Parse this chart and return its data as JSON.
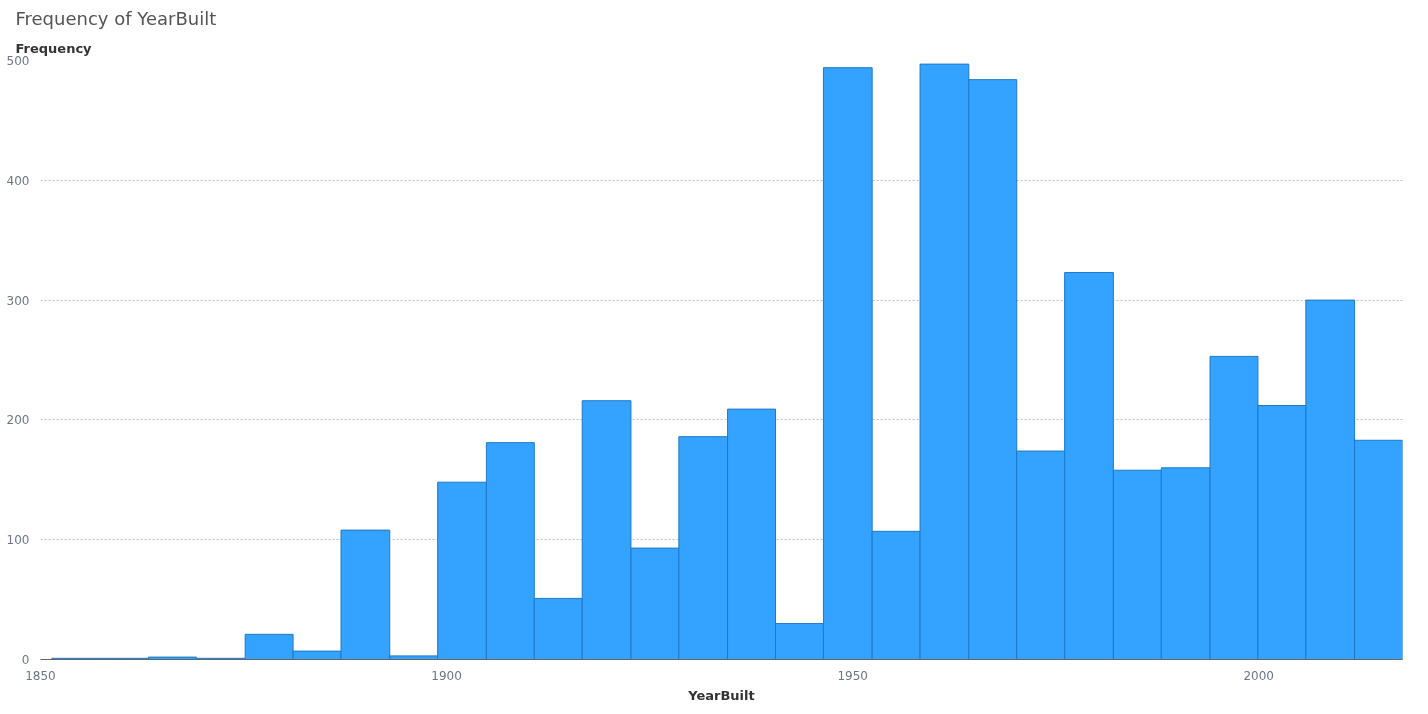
{
  "chart_data": {
    "type": "histogram",
    "title": "Frequency of YearBuilt",
    "xlabel": "YearBuilt",
    "ylabel": "Frequency",
    "bins": [
      1851.4,
      1857.3,
      1863.3,
      1869.2,
      1875.2,
      1881.1,
      1887.0,
      1893.0,
      1898.9,
      1904.9,
      1910.8,
      1916.7,
      1922.7,
      1928.6,
      1934.6,
      1940.5,
      1946.4,
      1952.4,
      1958.3,
      1964.3,
      1970.2,
      1976.1,
      1982.1,
      1988.0,
      1994.0,
      1999.9,
      2005.8,
      2011.8,
      2017.7
    ],
    "values": [
      1,
      1,
      2,
      1,
      21,
      7,
      108,
      3,
      148,
      181,
      51,
      216,
      93,
      186,
      209,
      30,
      494,
      107,
      497,
      484,
      174,
      323,
      158,
      160,
      253,
      212,
      300,
      183
    ],
    "color": "#33a3ff",
    "xlim": [
      1850,
      2017.7
    ],
    "xticks": [
      1850,
      1900,
      1950,
      2000
    ],
    "ylim": [
      0,
      500
    ],
    "yticks": [
      0,
      100,
      200,
      300,
      400,
      500
    ],
    "grid": "y"
  }
}
